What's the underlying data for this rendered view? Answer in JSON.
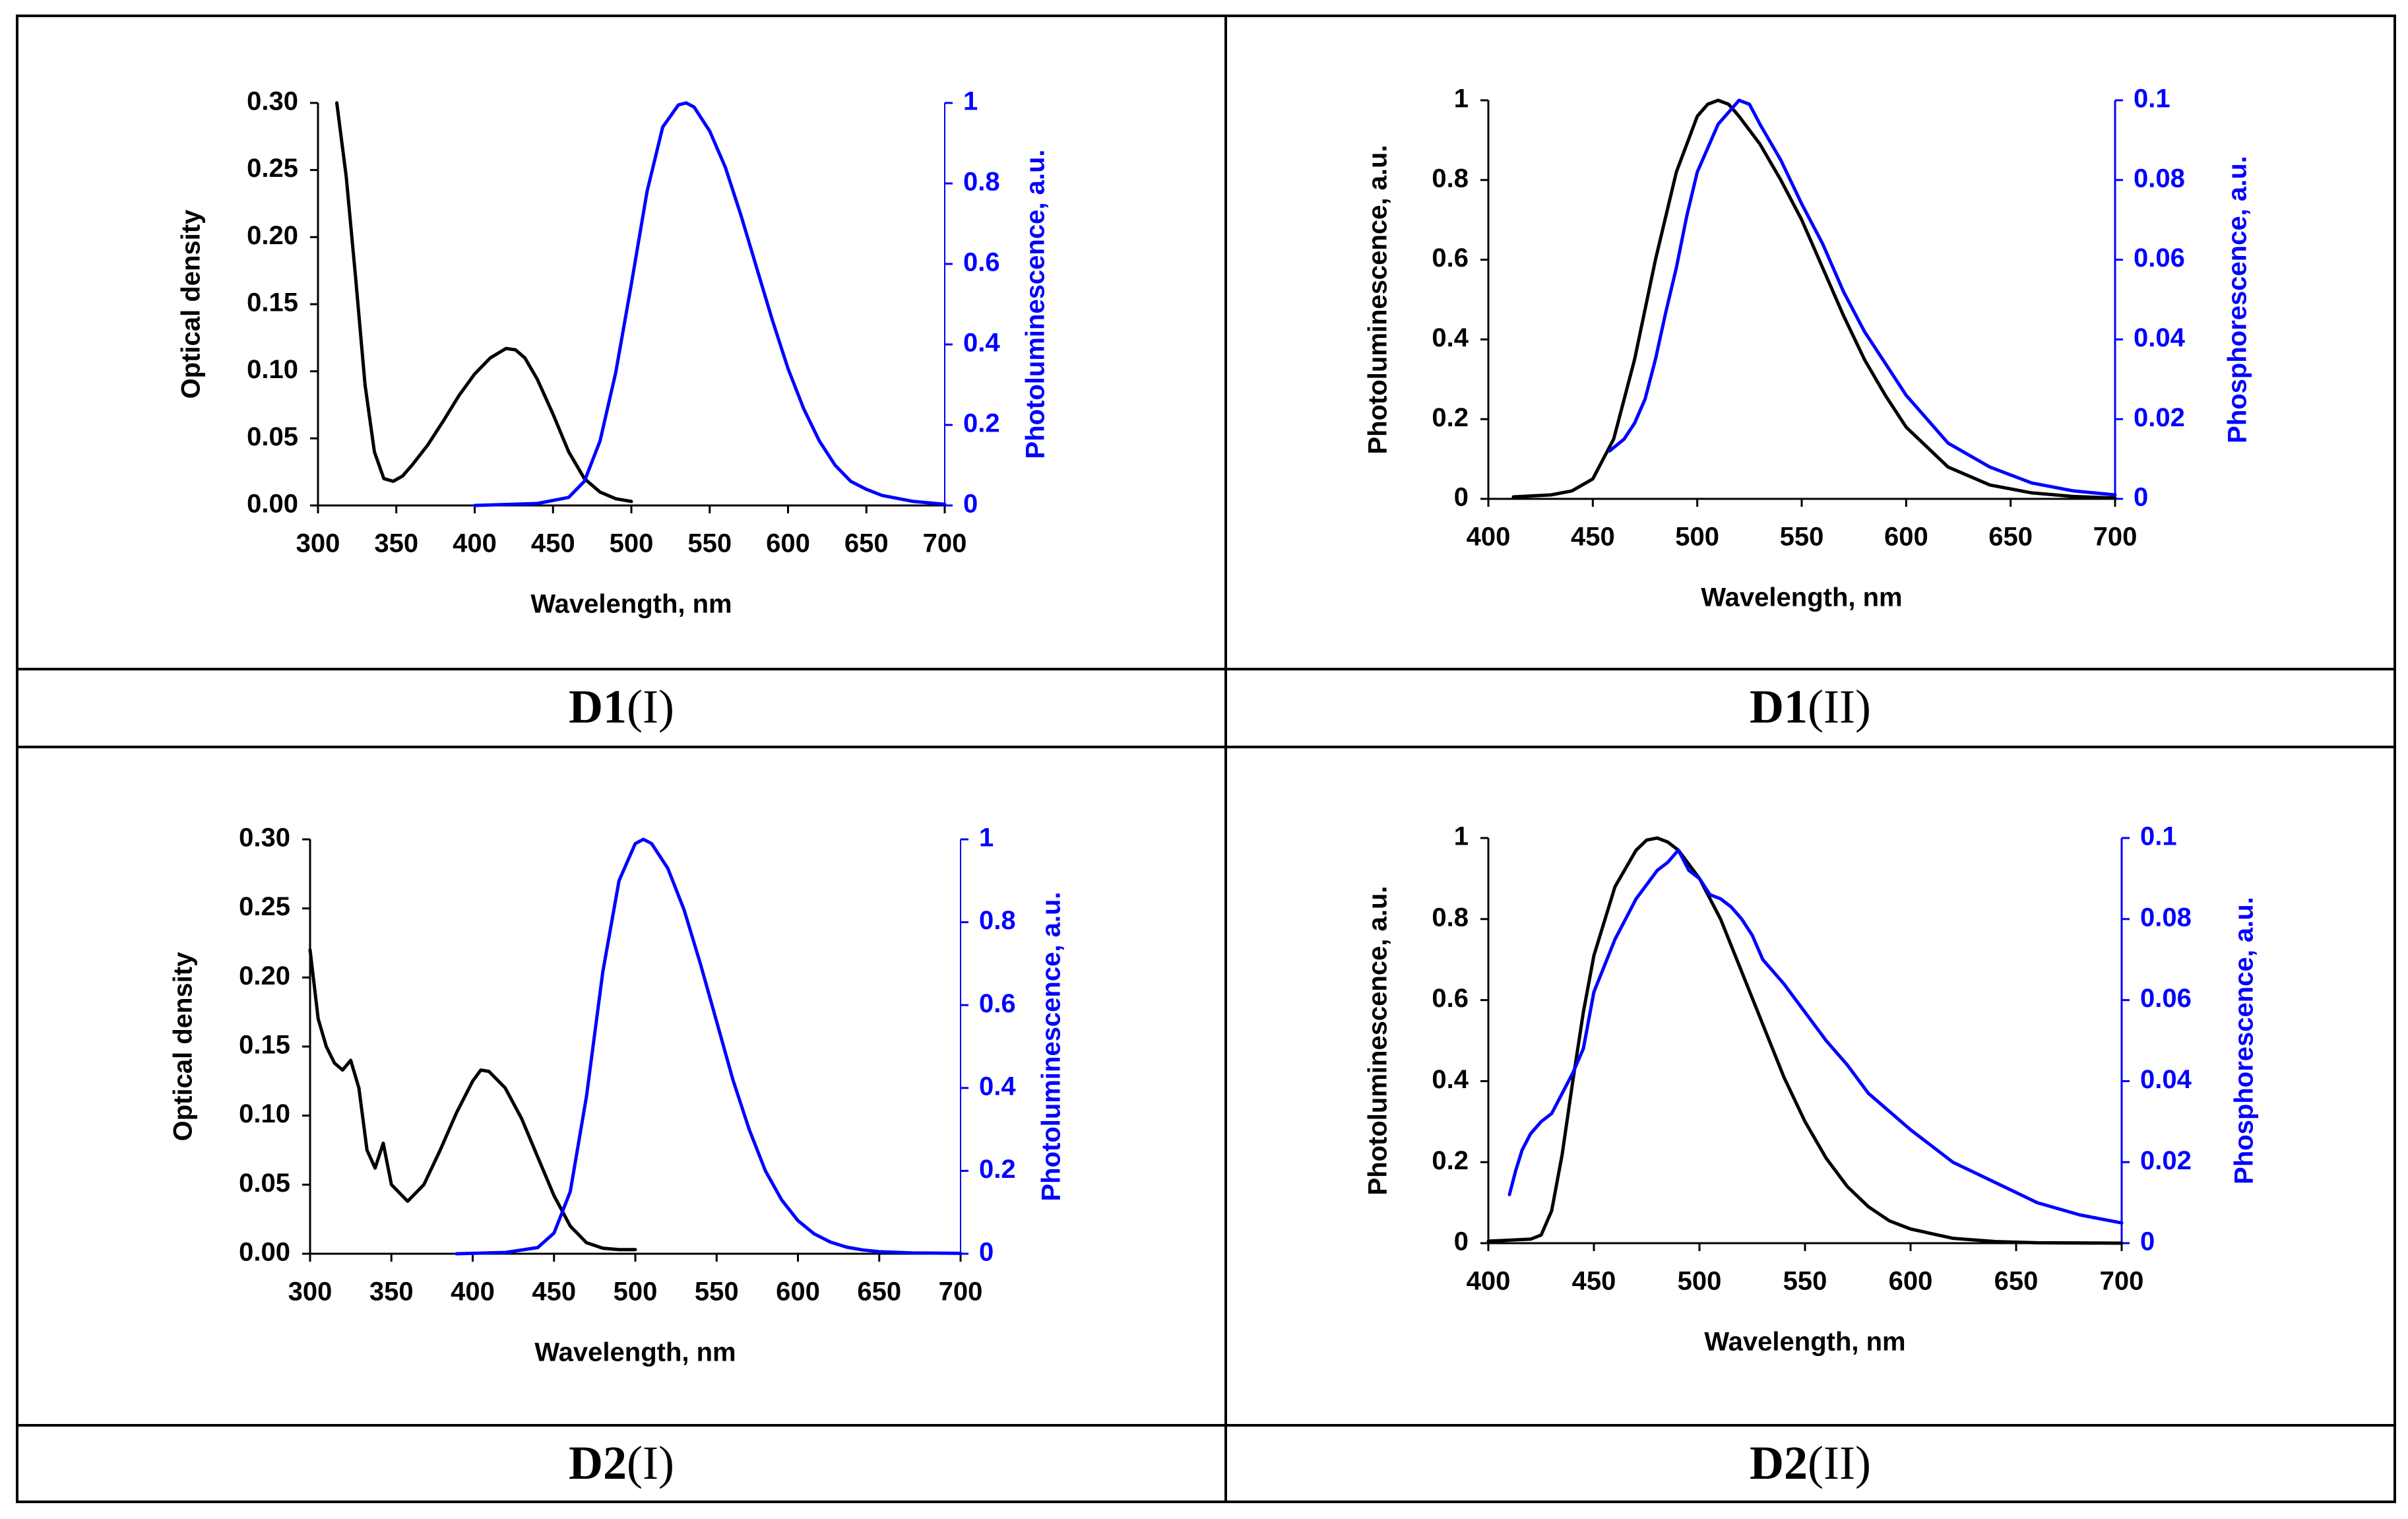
{
  "captions": [
    {
      "bold": "D1",
      "roman": "(I)"
    },
    {
      "bold": "D1",
      "roman": "(II)"
    },
    {
      "bold": "D2",
      "roman": "(I)"
    },
    {
      "bold": "D2",
      "roman": "(II)"
    }
  ],
  "colors": {
    "black_series": "#000000",
    "blue_series": "#0000ff",
    "blue_axis": "#0000ff"
  },
  "chart_data": [
    {
      "id": "D1-I",
      "type": "line",
      "xlabel": "Wavelength, nm",
      "ylabel": "Optical density",
      "y2label": "Photoluminescence, a.u.",
      "xlim": [
        300,
        700
      ],
      "ylim": [
        0,
        0.3
      ],
      "y2lim": [
        0,
        1
      ],
      "xticks": [
        "300",
        "350",
        "400",
        "450",
        "500",
        "550",
        "600",
        "650",
        "700"
      ],
      "yticks": [
        "0.00",
        "0.05",
        "0.10",
        "0.15",
        "0.20",
        "0.25",
        "0.30"
      ],
      "y2ticks": [
        "0",
        "0.2",
        "0.4",
        "0.6",
        "0.8",
        "1"
      ],
      "series": [
        {
          "name": "Optical density",
          "axis": "left",
          "color": "#000000",
          "x": [
            312,
            318,
            324,
            330,
            336,
            342,
            348,
            354,
            360,
            370,
            380,
            390,
            400,
            410,
            420,
            426,
            432,
            440,
            450,
            460,
            470,
            480,
            490,
            500
          ],
          "y": [
            0.3,
            0.245,
            0.17,
            0.09,
            0.04,
            0.02,
            0.018,
            0.022,
            0.03,
            0.045,
            0.063,
            0.082,
            0.098,
            0.11,
            0.117,
            0.116,
            0.11,
            0.094,
            0.068,
            0.04,
            0.02,
            0.01,
            0.005,
            0.003
          ]
        },
        {
          "name": "Photoluminescence",
          "axis": "right",
          "color": "#0000ff",
          "x": [
            400,
            440,
            460,
            470,
            480,
            490,
            500,
            510,
            520,
            530,
            535,
            540,
            550,
            560,
            570,
            580,
            590,
            600,
            610,
            620,
            630,
            640,
            650,
            660,
            680,
            700
          ],
          "y": [
            0,
            0.005,
            0.02,
            0.06,
            0.16,
            0.33,
            0.55,
            0.78,
            0.94,
            0.995,
            1.0,
            0.99,
            0.93,
            0.84,
            0.72,
            0.59,
            0.46,
            0.34,
            0.24,
            0.16,
            0.1,
            0.06,
            0.04,
            0.025,
            0.01,
            0.003
          ]
        }
      ]
    },
    {
      "id": "D1-II",
      "type": "line",
      "xlabel": "Wavelength, nm",
      "ylabel": "Photoluminescence, a.u.",
      "y2label": "Phosphorescence, a.u.",
      "xlim": [
        400,
        700
      ],
      "ylim": [
        0,
        1
      ],
      "y2lim": [
        0,
        0.1
      ],
      "xticks": [
        "400",
        "450",
        "500",
        "550",
        "600",
        "650",
        "700"
      ],
      "yticks": [
        "0",
        "0.2",
        "0.4",
        "0.6",
        "0.8",
        "1"
      ],
      "y2ticks": [
        "0",
        "0.02",
        "0.04",
        "0.06",
        "0.08",
        "0.1"
      ],
      "series": [
        {
          "name": "Photoluminescence",
          "axis": "left",
          "color": "#000000",
          "x": [
            412,
            430,
            440,
            450,
            460,
            470,
            480,
            490,
            500,
            505,
            510,
            515,
            520,
            530,
            540,
            550,
            560,
            570,
            580,
            590,
            600,
            620,
            640,
            660,
            680,
            700
          ],
          "y": [
            0.005,
            0.01,
            0.02,
            0.05,
            0.15,
            0.35,
            0.6,
            0.82,
            0.96,
            0.99,
            1.0,
            0.99,
            0.96,
            0.89,
            0.8,
            0.7,
            0.58,
            0.46,
            0.35,
            0.26,
            0.18,
            0.08,
            0.035,
            0.015,
            0.006,
            0.002
          ]
        },
        {
          "name": "Phosphorescence",
          "axis": "right",
          "color": "#0000ff",
          "x": [
            458,
            465,
            470,
            475,
            480,
            485,
            490,
            495,
            500,
            505,
            510,
            515,
            520,
            525,
            530,
            540,
            550,
            560,
            570,
            580,
            590,
            600,
            610,
            620,
            640,
            660,
            680,
            700
          ],
          "y": [
            0.012,
            0.015,
            0.019,
            0.025,
            0.035,
            0.047,
            0.058,
            0.071,
            0.082,
            0.088,
            0.094,
            0.097,
            0.1,
            0.099,
            0.094,
            0.085,
            0.074,
            0.064,
            0.052,
            0.042,
            0.034,
            0.026,
            0.02,
            0.014,
            0.008,
            0.004,
            0.002,
            0.001
          ]
        }
      ]
    },
    {
      "id": "D2-I",
      "type": "line",
      "xlabel": "Wavelength, nm",
      "ylabel": "Optical density",
      "y2label": "Photoluminescence, a.u.",
      "xlim": [
        300,
        700
      ],
      "ylim": [
        0,
        0.3
      ],
      "y2lim": [
        0,
        1
      ],
      "xticks": [
        "300",
        "350",
        "400",
        "450",
        "500",
        "550",
        "600",
        "650",
        "700"
      ],
      "yticks": [
        "0.00",
        "0.05",
        "0.10",
        "0.15",
        "0.20",
        "0.25",
        "0.30"
      ],
      "y2ticks": [
        "0",
        "0.2",
        "0.4",
        "0.6",
        "0.8",
        "1"
      ],
      "series": [
        {
          "name": "Optical density",
          "axis": "left",
          "color": "#000000",
          "x": [
            300,
            305,
            310,
            315,
            320,
            325,
            330,
            335,
            340,
            345,
            350,
            360,
            370,
            380,
            390,
            400,
            405,
            410,
            420,
            430,
            440,
            450,
            460,
            470,
            480,
            490,
            500
          ],
          "y": [
            0.22,
            0.17,
            0.15,
            0.138,
            0.133,
            0.14,
            0.12,
            0.075,
            0.062,
            0.08,
            0.05,
            0.038,
            0.05,
            0.075,
            0.102,
            0.125,
            0.133,
            0.132,
            0.12,
            0.098,
            0.07,
            0.042,
            0.02,
            0.008,
            0.004,
            0.003,
            0.003
          ]
        },
        {
          "name": "Photoluminescence",
          "axis": "right",
          "color": "#0000ff",
          "x": [
            390,
            420,
            440,
            450,
            460,
            470,
            480,
            490,
            500,
            505,
            510,
            520,
            530,
            540,
            550,
            560,
            570,
            580,
            590,
            600,
            610,
            620,
            630,
            640,
            650,
            670,
            700
          ],
          "y": [
            0,
            0.003,
            0.015,
            0.05,
            0.15,
            0.38,
            0.68,
            0.9,
            0.99,
            1.0,
            0.99,
            0.93,
            0.83,
            0.7,
            0.56,
            0.42,
            0.3,
            0.2,
            0.13,
            0.08,
            0.048,
            0.028,
            0.016,
            0.009,
            0.005,
            0.002,
            0.001
          ]
        }
      ]
    },
    {
      "id": "D2-II",
      "type": "line",
      "xlabel": "Wavelength, nm",
      "ylabel": "Photoluminescence, a.u.",
      "y2label": "Phosphorescence, a.u.",
      "xlim": [
        400,
        700
      ],
      "ylim": [
        0,
        1
      ],
      "y2lim": [
        0,
        0.1
      ],
      "xticks": [
        "400",
        "450",
        "500",
        "550",
        "600",
        "650",
        "700"
      ],
      "yticks": [
        "0",
        "0.2",
        "0.4",
        "0.6",
        "0.8",
        "1"
      ],
      "y2ticks": [
        "0",
        "0.02",
        "0.04",
        "0.06",
        "0.08",
        "0.1"
      ],
      "series": [
        {
          "name": "Photoluminescence",
          "axis": "left",
          "color": "#000000",
          "x": [
            400,
            420,
            425,
            430,
            435,
            440,
            445,
            450,
            460,
            470,
            475,
            480,
            485,
            490,
            500,
            510,
            520,
            530,
            540,
            550,
            560,
            570,
            580,
            590,
            600,
            620,
            640,
            660,
            700
          ],
          "y": [
            0.005,
            0.01,
            0.02,
            0.08,
            0.22,
            0.4,
            0.57,
            0.71,
            0.88,
            0.97,
            0.995,
            1.0,
            0.99,
            0.97,
            0.9,
            0.8,
            0.67,
            0.54,
            0.41,
            0.3,
            0.21,
            0.14,
            0.09,
            0.055,
            0.035,
            0.012,
            0.004,
            0.001,
            0.0
          ]
        },
        {
          "name": "Phosphorescence",
          "axis": "right",
          "color": "#0000ff",
          "x": [
            410,
            413,
            416,
            420,
            425,
            430,
            440,
            445,
            450,
            460,
            470,
            480,
            485,
            490,
            495,
            500,
            505,
            510,
            515,
            520,
            525,
            530,
            540,
            550,
            560,
            570,
            580,
            600,
            620,
            640,
            660,
            680,
            690,
            700
          ],
          "y": [
            0.012,
            0.018,
            0.023,
            0.027,
            0.03,
            0.032,
            0.042,
            0.048,
            0.062,
            0.075,
            0.085,
            0.092,
            0.094,
            0.097,
            0.092,
            0.09,
            0.086,
            0.085,
            0.083,
            0.08,
            0.076,
            0.07,
            0.064,
            0.057,
            0.05,
            0.044,
            0.037,
            0.028,
            0.02,
            0.015,
            0.01,
            0.007,
            0.006,
            0.005
          ]
        }
      ]
    }
  ]
}
